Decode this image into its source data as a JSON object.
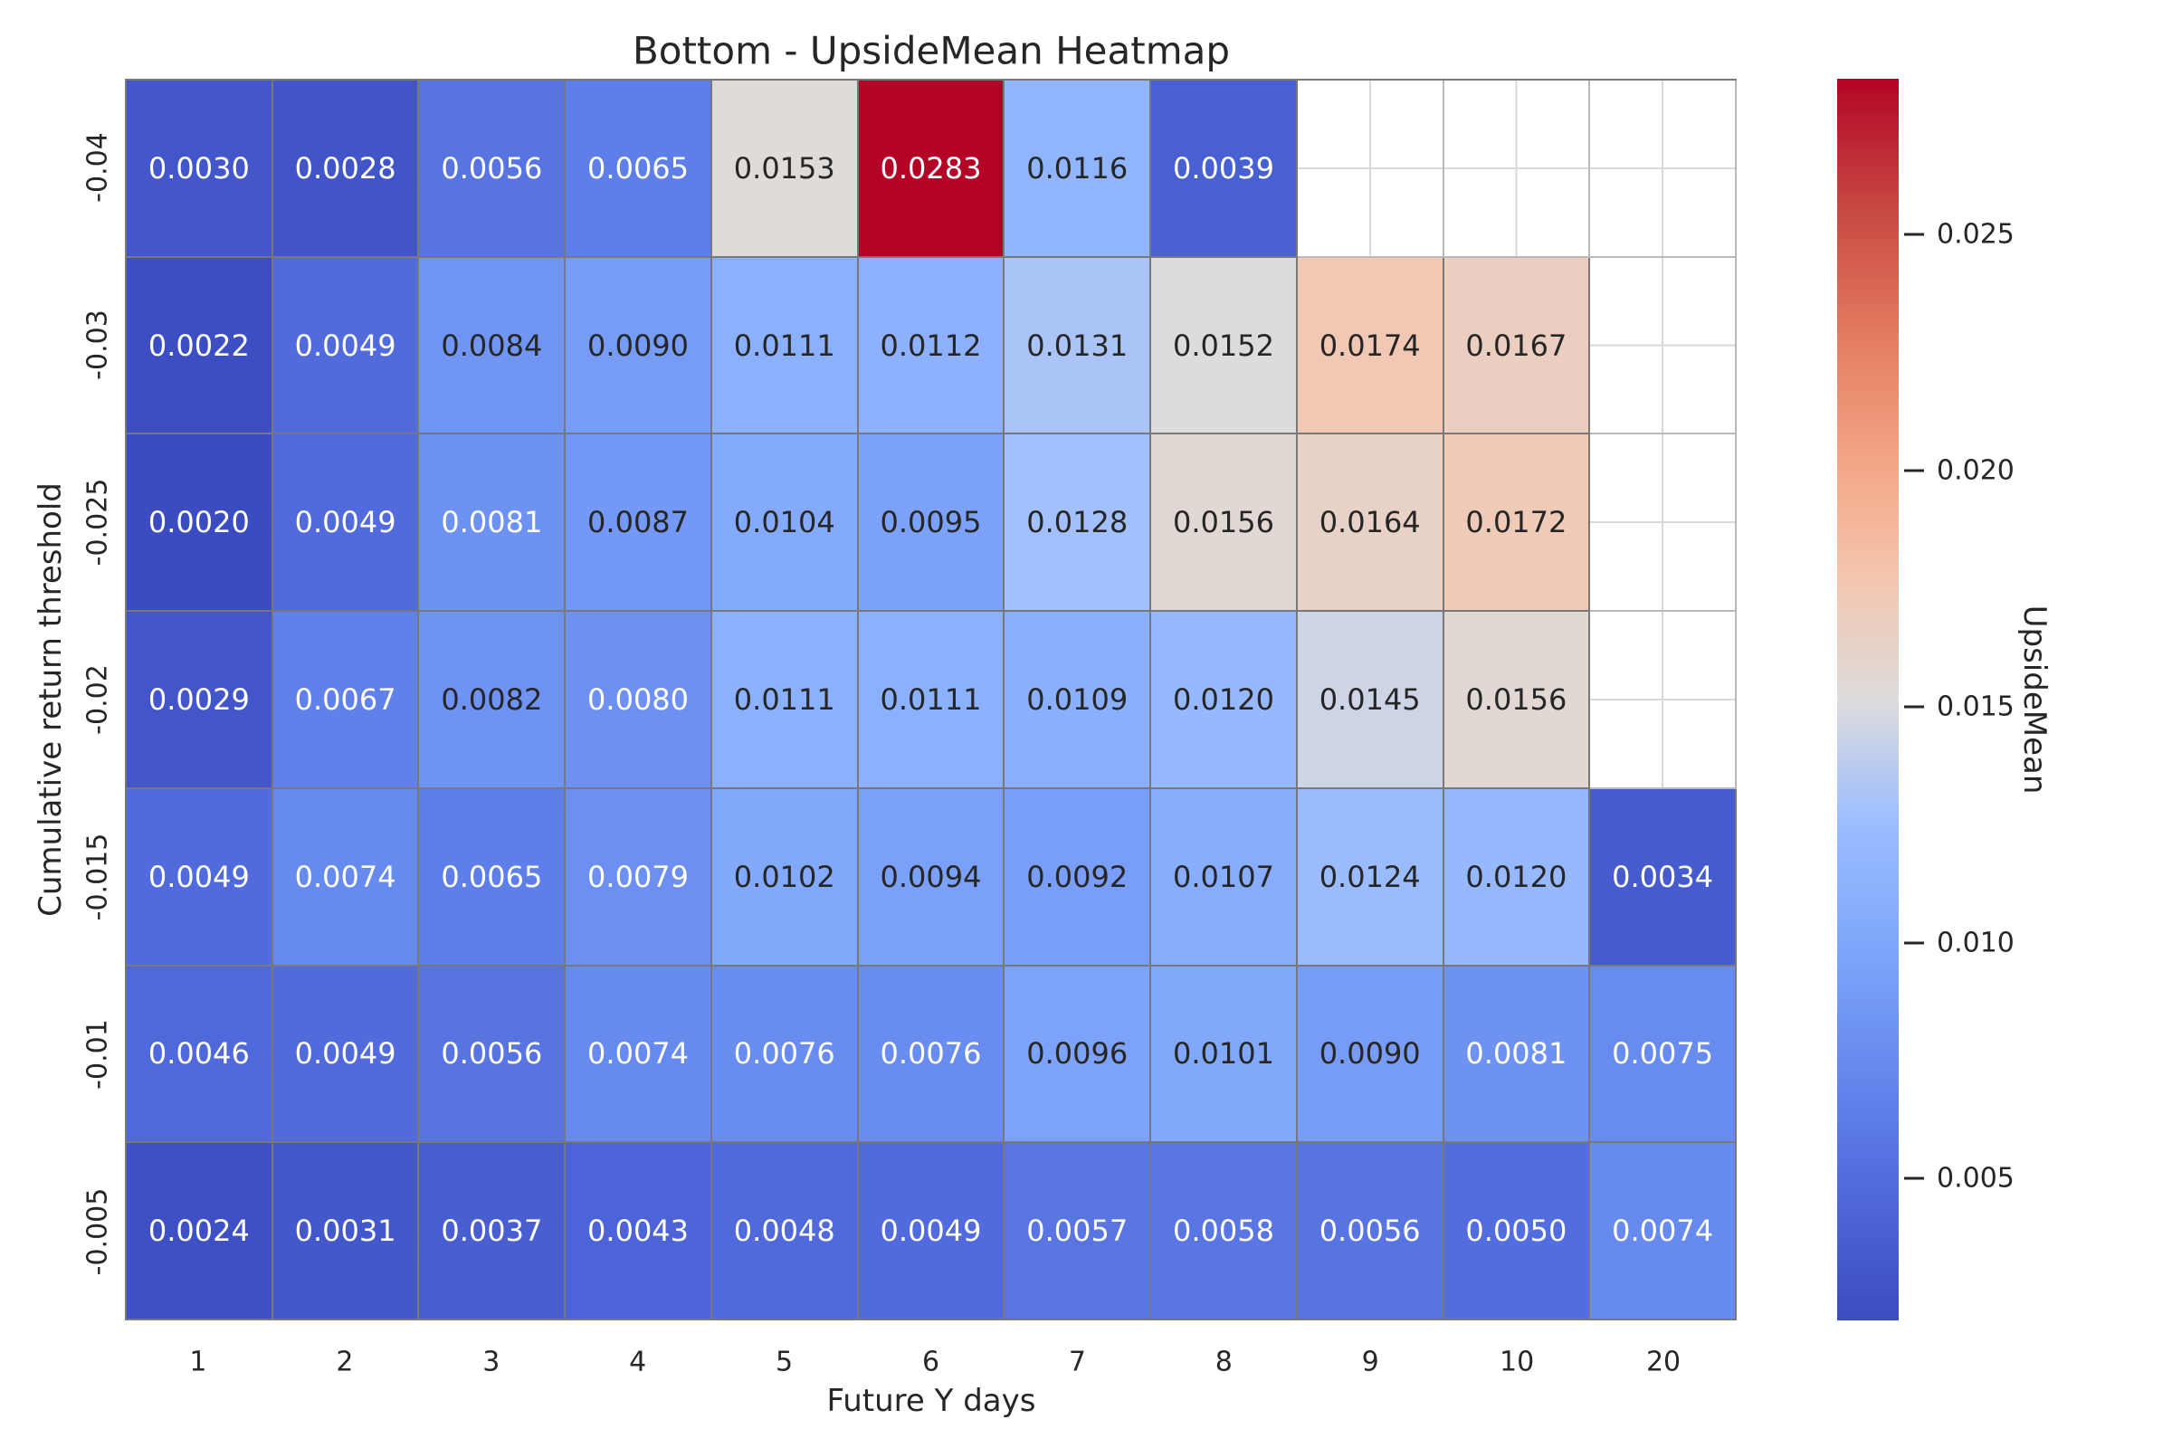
{
  "chart_data": {
    "type": "heatmap",
    "title": "Bottom - UpsideMean Heatmap",
    "xlabel": "Future Y days",
    "ylabel": "Cumulative return threshold",
    "x_categories": [
      "1",
      "2",
      "3",
      "4",
      "5",
      "6",
      "7",
      "8",
      "9",
      "10",
      "20"
    ],
    "y_categories": [
      "-0.04",
      "-0.03",
      "-0.025",
      "-0.02",
      "-0.015",
      "-0.01",
      "-0.005"
    ],
    "values": [
      [
        "0.0030",
        "0.0028",
        "0.0056",
        "0.0065",
        "0.0153",
        "0.0283",
        "0.0116",
        "0.0039",
        null,
        null,
        null
      ],
      [
        "0.0022",
        "0.0049",
        "0.0084",
        "0.0090",
        "0.0111",
        "0.0112",
        "0.0131",
        "0.0152",
        "0.0174",
        "0.0167",
        null
      ],
      [
        "0.0020",
        "0.0049",
        "0.0081",
        "0.0087",
        "0.0104",
        "0.0095",
        "0.0128",
        "0.0156",
        "0.0164",
        "0.0172",
        null
      ],
      [
        "0.0029",
        "0.0067",
        "0.0082",
        "0.0080",
        "0.0111",
        "0.0111",
        "0.0109",
        "0.0120",
        "0.0145",
        "0.0156",
        null
      ],
      [
        "0.0049",
        "0.0074",
        "0.0065",
        "0.0079",
        "0.0102",
        "0.0094",
        "0.0092",
        "0.0107",
        "0.0124",
        "0.0120",
        "0.0034"
      ],
      [
        "0.0046",
        "0.0049",
        "0.0056",
        "0.0074",
        "0.0076",
        "0.0076",
        "0.0096",
        "0.0101",
        "0.0090",
        "0.0081",
        "0.0075"
      ],
      [
        "0.0024",
        "0.0031",
        "0.0037",
        "0.0043",
        "0.0048",
        "0.0049",
        "0.0057",
        "0.0058",
        "0.0056",
        "0.0050",
        "0.0074"
      ]
    ],
    "annot_white_text": [
      [
        true,
        true,
        true,
        true,
        false,
        true,
        false,
        true,
        null,
        null,
        null
      ],
      [
        true,
        true,
        false,
        false,
        false,
        false,
        false,
        false,
        false,
        false,
        null
      ],
      [
        true,
        true,
        true,
        false,
        false,
        false,
        false,
        false,
        false,
        false,
        null
      ],
      [
        true,
        true,
        false,
        true,
        false,
        false,
        false,
        false,
        false,
        false,
        null
      ],
      [
        true,
        true,
        true,
        true,
        false,
        false,
        false,
        false,
        false,
        false,
        true
      ],
      [
        true,
        true,
        true,
        true,
        true,
        true,
        false,
        false,
        false,
        true,
        true
      ],
      [
        true,
        true,
        true,
        true,
        true,
        true,
        true,
        true,
        true,
        true,
        true
      ]
    ],
    "colorbar": {
      "label": "UpsideMean",
      "ticks": [
        "0.005",
        "0.010",
        "0.015",
        "0.020",
        "0.025"
      ],
      "vmin": 0.002,
      "vmax": 0.0283,
      "colormap": "coolwarm"
    },
    "axis_ranges": {
      "columns": 11,
      "rows": 7
    },
    "colors": {
      "background": "#ffffff",
      "cell_border": "#787878",
      "empty_grid_line": "#d9d9d9",
      "text_dark": "#262626",
      "text_light": "#ffffff",
      "colormap_stops": [
        "#3b4cc0",
        "#4f68da",
        "#6688ee",
        "#7fa6fa",
        "#9bbdff",
        "#dddcdc",
        "#f4c5ad",
        "#f3a382",
        "#e1785d",
        "#c64641",
        "#b40426"
      ]
    }
  }
}
